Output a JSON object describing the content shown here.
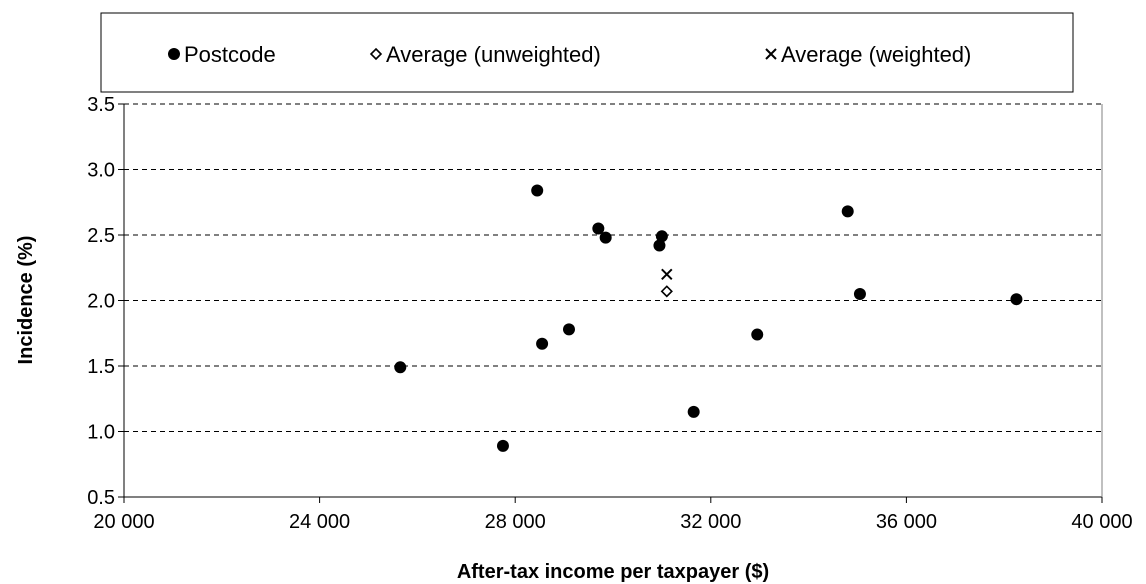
{
  "chart_data": {
    "type": "scatter",
    "xlabel": "After-tax income per taxpayer ($)",
    "ylabel": "Incidence (%)",
    "xlim": [
      20000,
      40000
    ],
    "ylim": [
      0.5,
      3.5
    ],
    "x_ticks": [
      20000,
      24000,
      28000,
      32000,
      36000,
      40000
    ],
    "x_tick_labels": [
      "20 000",
      "24 000",
      "28 000",
      "32 000",
      "36 000",
      "40 000"
    ],
    "y_ticks": [
      0.5,
      1.0,
      1.5,
      2.0,
      2.5,
      3.0,
      3.5
    ],
    "y_tick_labels": [
      "0.5",
      "1.0",
      "1.5",
      "2.0",
      "2.5",
      "3.0",
      "3.5"
    ],
    "grid": "horizontal dashed",
    "legend_position": "top",
    "series": [
      {
        "name": "Postcode",
        "marker": "filled-circle",
        "points": [
          {
            "x": 25650,
            "y": 1.49
          },
          {
            "x": 27750,
            "y": 0.89
          },
          {
            "x": 28450,
            "y": 2.84
          },
          {
            "x": 28550,
            "y": 1.67
          },
          {
            "x": 29100,
            "y": 1.78
          },
          {
            "x": 29700,
            "y": 2.55
          },
          {
            "x": 29850,
            "y": 2.48
          },
          {
            "x": 30950,
            "y": 2.42
          },
          {
            "x": 31000,
            "y": 2.49
          },
          {
            "x": 31650,
            "y": 1.15
          },
          {
            "x": 32950,
            "y": 1.74
          },
          {
            "x": 34800,
            "y": 2.68
          },
          {
            "x": 35050,
            "y": 2.05
          },
          {
            "x": 38250,
            "y": 2.01
          }
        ]
      },
      {
        "name": "Average (unweighted)",
        "marker": "open-diamond",
        "points": [
          {
            "x": 31100,
            "y": 2.07
          }
        ]
      },
      {
        "name": "Average (weighted)",
        "marker": "x",
        "points": [
          {
            "x": 31100,
            "y": 2.2
          }
        ]
      }
    ]
  }
}
